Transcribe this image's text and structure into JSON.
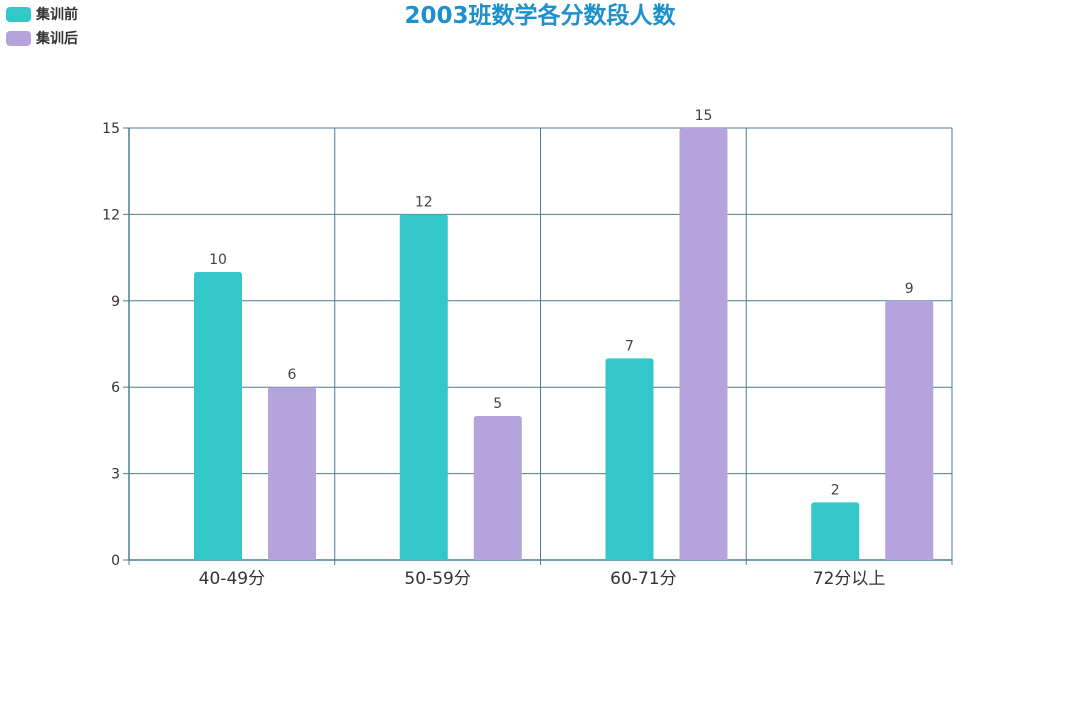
{
  "chart_data": {
    "type": "bar",
    "title": "2003班数学各分数段人数",
    "categories": [
      "40-49分",
      "50-59分",
      "60-71分",
      "72分以上"
    ],
    "series": [
      {
        "name": "集训前",
        "values": [
          10,
          12,
          7,
          2
        ],
        "color": "#33c7c9"
      },
      {
        "name": "集训后",
        "values": [
          6,
          5,
          15,
          9
        ],
        "color": "#b5a4dc"
      }
    ],
    "ylim": [
      0,
      15
    ],
    "yticks": [
      0,
      3,
      6,
      9,
      12,
      15
    ],
    "grid": true,
    "legend": "top-left",
    "show_data_labels": true,
    "axis_color": "#4a7f92"
  }
}
